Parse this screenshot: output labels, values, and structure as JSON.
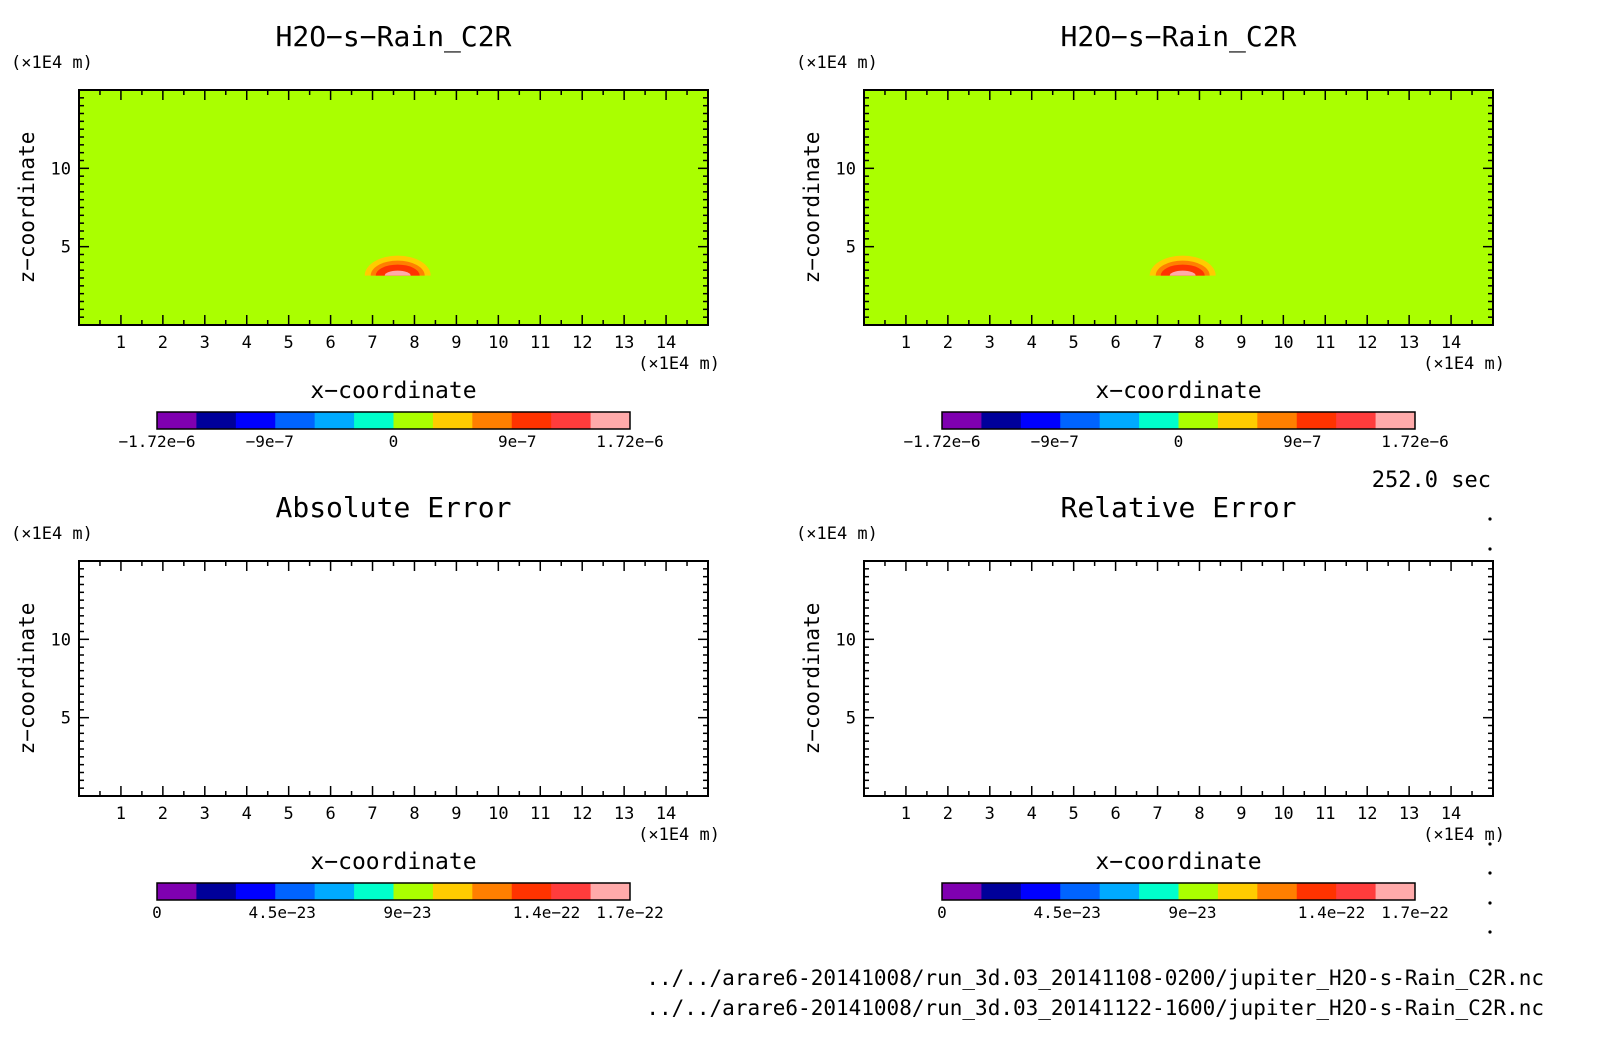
{
  "time_label": "252.0 sec",
  "files": [
    "../../arare6-20141008/run_3d.03_20141108-0200/jupiter_H2O-s-Rain_C2R.nc",
    "../../arare6-20141008/run_3d.03_20141122-1600/jupiter_H2O-s-Rain_C2R.nc"
  ],
  "colors": {
    "background_field": "#aaff00",
    "frame": "#000000",
    "palette": [
      "#7f00b0",
      "#00009a",
      "#0000ff",
      "#0064ff",
      "#00aaff",
      "#00ffcc",
      "#aaff00",
      "#ffcc00",
      "#ff7f00",
      "#ff3300",
      "#ff3c3c",
      "#ffaaaa"
    ]
  },
  "chart_data": [
    {
      "type": "heatmap",
      "title": "H2O−s−Rain_C2R",
      "xlabel": "x−coordinate",
      "ylabel": "z−coordinate",
      "x_unit": "(×1E4 m)",
      "y_unit": "(×1E4 m)",
      "xlim": [
        0,
        15
      ],
      "ylim": [
        0,
        15
      ],
      "xticks": [
        "1",
        "2",
        "3",
        "4",
        "5",
        "6",
        "7",
        "8",
        "9",
        "10",
        "11",
        "12",
        "13",
        "14"
      ],
      "yticks": [
        "5",
        "10"
      ],
      "field_color": "#aaff00",
      "feature": {
        "center_x": 7.6,
        "center_z": 3.6,
        "levels": [
          "#ffcc00",
          "#ff7f00",
          "#ff3300",
          "#ffaaaa"
        ]
      },
      "colorbar_labels": [
        "−1.72e−6",
        "−9e−7",
        "0",
        "9e−7",
        "1.72e−6"
      ],
      "colorbar_range": [
        -1.72e-06,
        1.72e-06
      ]
    },
    {
      "type": "heatmap",
      "title": "H2O−s−Rain_C2R",
      "xlabel": "x−coordinate",
      "ylabel": "z−coordinate",
      "x_unit": "(×1E4 m)",
      "y_unit": "(×1E4 m)",
      "xlim": [
        0,
        15
      ],
      "ylim": [
        0,
        15
      ],
      "xticks": [
        "1",
        "2",
        "3",
        "4",
        "5",
        "6",
        "7",
        "8",
        "9",
        "10",
        "11",
        "12",
        "13",
        "14"
      ],
      "yticks": [
        "5",
        "10"
      ],
      "field_color": "#aaff00",
      "feature": {
        "center_x": 7.6,
        "center_z": 3.6,
        "levels": [
          "#ffcc00",
          "#ff7f00",
          "#ff3300",
          "#ffaaaa"
        ]
      },
      "colorbar_labels": [
        "−1.72e−6",
        "−9e−7",
        "0",
        "9e−7",
        "1.72e−6"
      ],
      "colorbar_range": [
        -1.72e-06,
        1.72e-06
      ]
    },
    {
      "type": "heatmap",
      "title": "Absolute Error",
      "xlabel": "x−coordinate",
      "ylabel": "z−coordinate",
      "x_unit": "(×1E4 m)",
      "y_unit": "(×1E4 m)",
      "xlim": [
        0,
        15
      ],
      "ylim": [
        0,
        15
      ],
      "xticks": [
        "1",
        "2",
        "3",
        "4",
        "5",
        "6",
        "7",
        "8",
        "9",
        "10",
        "11",
        "12",
        "13",
        "14"
      ],
      "yticks": [
        "5",
        "10"
      ],
      "field_color": "#ffffff",
      "colorbar_labels": [
        "0",
        "4.5e−23",
        "9e−23",
        "1.4e−22",
        "1.7e−22"
      ],
      "colorbar_range": [
        0,
        1.7e-22
      ]
    },
    {
      "type": "heatmap",
      "title": "Relative Error",
      "xlabel": "x−coordinate",
      "ylabel": "z−coordinate",
      "x_unit": "(×1E4 m)",
      "y_unit": "(×1E4 m)",
      "xlim": [
        0,
        15
      ],
      "ylim": [
        0,
        15
      ],
      "xticks": [
        "1",
        "2",
        "3",
        "4",
        "5",
        "6",
        "7",
        "8",
        "9",
        "10",
        "11",
        "12",
        "13",
        "14"
      ],
      "yticks": [
        "5",
        "10"
      ],
      "field_color": "#ffffff",
      "colorbar_labels": [
        "0",
        "4.5e−23",
        "9e−23",
        "1.4e−22",
        "1.7e−22"
      ],
      "colorbar_range": [
        0,
        1.7e-22
      ]
    }
  ]
}
